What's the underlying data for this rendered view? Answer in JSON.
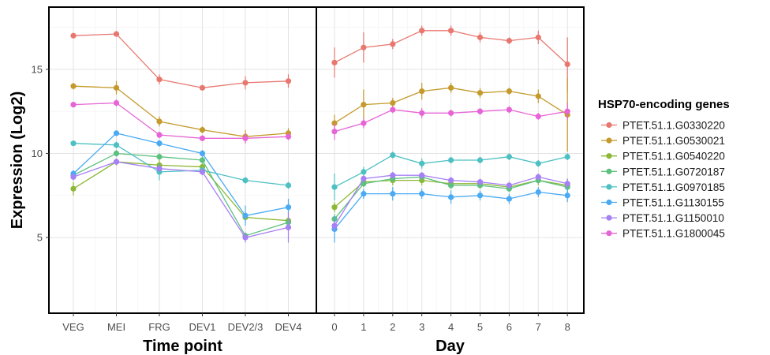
{
  "chart_data": {
    "type": "line",
    "ylabel": "Expression (Log2)",
    "y_ticks": [
      5,
      10,
      15
    ],
    "ylim": [
      0.5,
      18.7
    ],
    "grid": true,
    "legend_title": "HSP70-encoding genes",
    "legend_position": "right",
    "series_meta": [
      {
        "name": "PTET.51.1.G0330220",
        "color": "#E8776F"
      },
      {
        "name": "PTET.51.1.G0530021",
        "color": "#C49A2C"
      },
      {
        "name": "PTET.51.1.G0540220",
        "color": "#8DB836"
      },
      {
        "name": "PTET.51.1.G0720187",
        "color": "#5DC17E"
      },
      {
        "name": "PTET.51.1.G0970185",
        "color": "#4EC0C2"
      },
      {
        "name": "PTET.51.1.G1130155",
        "color": "#4AAAF2"
      },
      {
        "name": "PTET.51.1.G1150010",
        "color": "#A680F5"
      },
      {
        "name": "PTET.51.1.G1800045",
        "color": "#E764D6"
      }
    ],
    "panels": [
      {
        "xlabel": "Time point",
        "categories": [
          "VEG",
          "MEI",
          "FRG",
          "DEV1",
          "DEV2/3",
          "DEV4"
        ],
        "series": [
          {
            "values": [
              17.0,
              17.1,
              14.4,
              13.9,
              14.2,
              14.3
            ],
            "errors": [
              0.1,
              0.1,
              0.3,
              0.1,
              0.4,
              0.4
            ]
          },
          {
            "values": [
              14.0,
              13.9,
              11.9,
              11.4,
              11.0,
              11.2
            ],
            "errors": [
              0.2,
              0.4,
              0.3,
              0.2,
              0.4,
              0.3
            ]
          },
          {
            "values": [
              7.9,
              9.5,
              9.3,
              9.2,
              6.2,
              6.0
            ],
            "errors": [
              0.4,
              0.2,
              0.3,
              0.2,
              0.3,
              0.3
            ]
          },
          {
            "values": [
              8.7,
              10.0,
              9.8,
              9.6,
              5.1,
              5.9
            ],
            "errors": [
              0.2,
              0.2,
              0.2,
              0.2,
              0.2,
              0.3
            ]
          },
          {
            "values": [
              10.6,
              10.5,
              8.9,
              9.0,
              8.4,
              8.1
            ],
            "errors": [
              0.1,
              0.2,
              0.5,
              0.2,
              0.2,
              0.2
            ]
          },
          {
            "values": [
              8.8,
              11.2,
              10.6,
              10.0,
              6.3,
              6.8
            ],
            "errors": [
              0.2,
              0.1,
              0.2,
              0.2,
              0.6,
              0.5
            ]
          },
          {
            "values": [
              8.6,
              9.5,
              9.1,
              8.9,
              5.0,
              5.6
            ],
            "errors": [
              0.2,
              0.2,
              0.2,
              0.2,
              0.3,
              0.9
            ]
          },
          {
            "values": [
              12.9,
              13.0,
              11.1,
              10.9,
              10.9,
              11.0
            ],
            "errors": [
              0.1,
              0.2,
              0.2,
              0.1,
              0.3,
              0.2
            ]
          }
        ]
      },
      {
        "xlabel": "Day",
        "categories": [
          "0",
          "1",
          "2",
          "3",
          "4",
          "5",
          "6",
          "7",
          "8"
        ],
        "series": [
          {
            "values": [
              15.4,
              16.3,
              16.5,
              17.3,
              17.3,
              16.9,
              16.7,
              16.9,
              15.3
            ],
            "errors": [
              0.9,
              0.9,
              0.3,
              0.3,
              0.3,
              0.3,
              0.2,
              0.4,
              1.6
            ]
          },
          {
            "values": [
              11.8,
              12.9,
              13.0,
              13.7,
              13.9,
              13.6,
              13.7,
              13.4,
              12.3
            ],
            "errors": [
              0.5,
              0.9,
              0.3,
              0.5,
              0.3,
              0.3,
              0.2,
              0.4,
              2.2
            ]
          },
          {
            "values": [
              6.8,
              8.3,
              8.4,
              8.4,
              8.2,
              8.2,
              8.0,
              8.4,
              8.1
            ],
            "errors": [
              0.3,
              0.3,
              0.3,
              0.3,
              0.3,
              0.2,
              0.2,
              0.3,
              0.4
            ]
          },
          {
            "values": [
              6.1,
              8.2,
              8.5,
              8.6,
              8.1,
              8.1,
              7.9,
              8.4,
              8.0
            ],
            "errors": [
              0.3,
              0.2,
              0.2,
              0.2,
              0.2,
              0.2,
              0.2,
              0.2,
              0.3
            ]
          },
          {
            "values": [
              8.0,
              8.9,
              9.9,
              9.4,
              9.6,
              9.6,
              9.8,
              9.4,
              9.8
            ],
            "errors": [
              0.8,
              0.3,
              0.2,
              0.3,
              0.2,
              0.2,
              0.2,
              0.2,
              0.2
            ]
          },
          {
            "values": [
              5.5,
              7.6,
              7.6,
              7.6,
              7.4,
              7.5,
              7.3,
              7.7,
              7.5
            ],
            "errors": [
              0.8,
              0.3,
              0.4,
              0.3,
              0.4,
              0.3,
              0.3,
              0.3,
              0.4
            ]
          },
          {
            "values": [
              5.7,
              8.5,
              8.7,
              8.7,
              8.4,
              8.3,
              8.1,
              8.6,
              8.2
            ],
            "errors": [
              0.3,
              0.2,
              0.2,
              0.2,
              0.2,
              0.2,
              0.2,
              0.2,
              0.3
            ]
          },
          {
            "values": [
              11.3,
              11.8,
              12.6,
              12.4,
              12.4,
              12.5,
              12.6,
              12.2,
              12.5
            ],
            "errors": [
              0.5,
              0.3,
              0.2,
              0.3,
              0.2,
              0.2,
              0.2,
              0.2,
              0.5
            ]
          }
        ]
      }
    ]
  }
}
